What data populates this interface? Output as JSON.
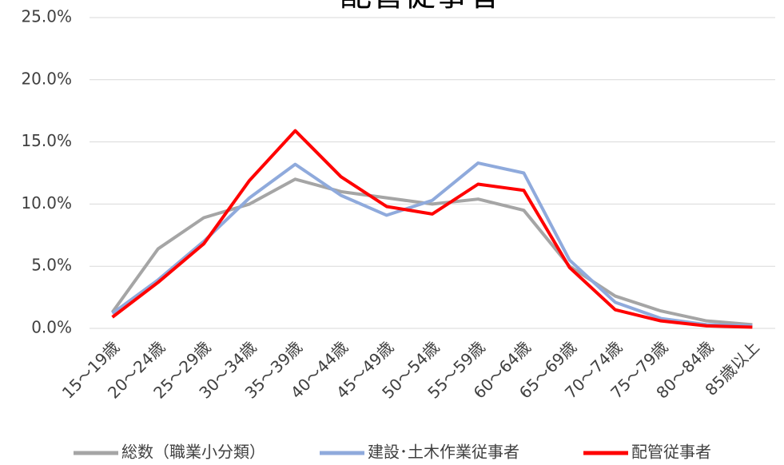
{
  "chart_data": {
    "type": "line",
    "title": "配管従事者",
    "categories": [
      "15～19歳",
      "20～24歳",
      "25～29歳",
      "30～34歳",
      "35～39歳",
      "40～44歳",
      "45～49歳",
      "50～54歳",
      "55～59歳",
      "60～64歳",
      "65～69歳",
      "70～74歳",
      "75～79歳",
      "80～84歳",
      "85歳以上"
    ],
    "series": [
      {
        "name": "総数（職業小分類）",
        "color": "#a5a5a5",
        "values": [
          1.3,
          6.4,
          8.9,
          10.0,
          12.0,
          11.0,
          10.5,
          10.0,
          10.4,
          9.5,
          5.0,
          2.6,
          1.4,
          0.6,
          0.3
        ]
      },
      {
        "name": "建設･土木作業従事者",
        "color": "#8faadc",
        "values": [
          1.2,
          3.9,
          7.0,
          10.5,
          13.2,
          10.7,
          9.1,
          10.3,
          13.3,
          12.5,
          5.5,
          2.1,
          0.8,
          0.3,
          0.2
        ]
      },
      {
        "name": "配管従事者",
        "color": "#ff0000",
        "values": [
          0.9,
          3.7,
          6.8,
          11.9,
          15.9,
          12.2,
          9.8,
          9.2,
          11.6,
          11.1,
          4.9,
          1.5,
          0.6,
          0.2,
          0.1
        ]
      }
    ],
    "ylim": [
      0,
      25
    ],
    "yticks": [
      {
        "value": 0,
        "label": "0.0%"
      },
      {
        "value": 5,
        "label": "5.0%"
      },
      {
        "value": 10,
        "label": "10.0%"
      },
      {
        "value": 15,
        "label": "15.0%"
      },
      {
        "value": 20,
        "label": "20.0%"
      },
      {
        "value": 25,
        "label": "25.0%"
      }
    ],
    "grid": true,
    "legend": "bottom"
  }
}
